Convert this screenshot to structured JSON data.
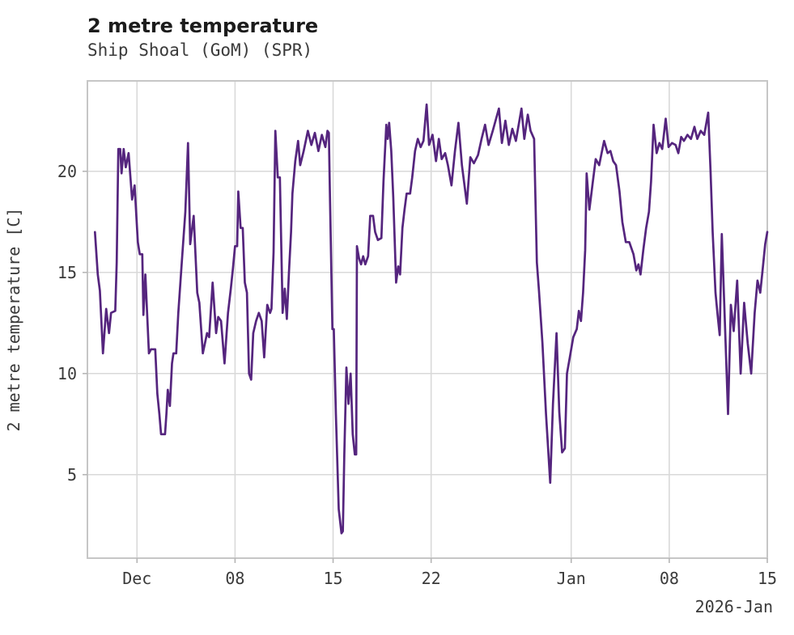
{
  "header": {
    "title": "2 metre temperature",
    "subtitle": "Ship Shoal (GoM) (SPR)"
  },
  "style": {
    "line_color": "#55257e",
    "grid_color": "#d9d9d9",
    "frame_color": "#c6c6c6",
    "tick_color": "#b5b5b5",
    "title_color": "#1c1c1c",
    "text_color": "#3a3a3a",
    "background": "#ffffff"
  },
  "chart_data": {
    "type": "line",
    "title": "2 metre temperature",
    "subtitle": "Ship Shoal (GoM) (SPR)",
    "ylabel": "2 metre temperature [C]",
    "xlabel": "",
    "x_axis_annotation": "2026-Jan",
    "grid": true,
    "legend_position": "none",
    "x_unit": "days relative to Dec 1 00:00 (Nov 28 = -3, Jan 15 = 45)",
    "xlim": [
      -3.54,
      45.0
    ],
    "ylim": [
      0.87,
      24.47
    ],
    "y_ticks": [
      5,
      10,
      15,
      20
    ],
    "x_ticks": [
      {
        "d": 0,
        "label": "Dec"
      },
      {
        "d": 7,
        "label": "08"
      },
      {
        "d": 14,
        "label": "15"
      },
      {
        "d": 21,
        "label": "22"
      },
      {
        "d": 31,
        "label": "Jan"
      },
      {
        "d": 38,
        "label": "08"
      },
      {
        "d": 45,
        "label": "15"
      }
    ],
    "series": [
      {
        "name": "2 metre temperature [C]",
        "color": "#55257e",
        "points": [
          [
            -3.0,
            17.0
          ],
          [
            -2.8,
            14.9
          ],
          [
            -2.65,
            14.1
          ],
          [
            -2.43,
            11.0
          ],
          [
            -2.2,
            13.2
          ],
          [
            -2.0,
            12.0
          ],
          [
            -1.85,
            13.0
          ],
          [
            -1.55,
            13.1
          ],
          [
            -1.45,
            15.5
          ],
          [
            -1.33,
            21.1
          ],
          [
            -1.2,
            21.1
          ],
          [
            -1.1,
            19.9
          ],
          [
            -0.95,
            21.1
          ],
          [
            -0.8,
            20.2
          ],
          [
            -0.6,
            20.9
          ],
          [
            -0.5,
            20.0
          ],
          [
            -0.35,
            18.6
          ],
          [
            -0.17,
            19.3
          ],
          [
            0.06,
            16.5
          ],
          [
            0.2,
            15.9
          ],
          [
            0.38,
            15.9
          ],
          [
            0.46,
            12.9
          ],
          [
            0.6,
            14.9
          ],
          [
            0.85,
            11.0
          ],
          [
            1.0,
            11.2
          ],
          [
            1.3,
            11.2
          ],
          [
            1.45,
            9.0
          ],
          [
            1.6,
            8.0
          ],
          [
            1.72,
            7.0
          ],
          [
            2.0,
            7.0
          ],
          [
            2.1,
            8.0
          ],
          [
            2.2,
            9.2
          ],
          [
            2.35,
            8.4
          ],
          [
            2.5,
            10.5
          ],
          [
            2.6,
            11.0
          ],
          [
            2.8,
            11.0
          ],
          [
            2.95,
            13.0
          ],
          [
            3.2,
            15.5
          ],
          [
            3.45,
            18.0
          ],
          [
            3.64,
            21.4
          ],
          [
            3.8,
            16.4
          ],
          [
            4.05,
            17.8
          ],
          [
            4.3,
            14.0
          ],
          [
            4.45,
            13.5
          ],
          [
            4.7,
            11.0
          ],
          [
            4.85,
            11.5
          ],
          [
            5.0,
            12.0
          ],
          [
            5.15,
            11.8
          ],
          [
            5.4,
            14.5
          ],
          [
            5.65,
            12.0
          ],
          [
            5.8,
            12.8
          ],
          [
            6.0,
            12.6
          ],
          [
            6.25,
            10.5
          ],
          [
            6.5,
            13.0
          ],
          [
            6.7,
            14.2
          ],
          [
            6.85,
            15.2
          ],
          [
            7.0,
            16.3
          ],
          [
            7.15,
            16.3
          ],
          [
            7.23,
            19.0
          ],
          [
            7.4,
            17.2
          ],
          [
            7.55,
            17.2
          ],
          [
            7.7,
            14.5
          ],
          [
            7.85,
            14.0
          ],
          [
            8.0,
            10.0
          ],
          [
            8.15,
            9.7
          ],
          [
            8.3,
            12.0
          ],
          [
            8.5,
            12.6
          ],
          [
            8.7,
            13.0
          ],
          [
            8.9,
            12.6
          ],
          [
            9.08,
            10.8
          ],
          [
            9.3,
            13.4
          ],
          [
            9.5,
            13.0
          ],
          [
            9.6,
            13.2
          ],
          [
            9.75,
            16.0
          ],
          [
            9.88,
            22.0
          ],
          [
            10.05,
            19.7
          ],
          [
            10.2,
            19.7
          ],
          [
            10.4,
            13.0
          ],
          [
            10.55,
            14.2
          ],
          [
            10.7,
            12.7
          ],
          [
            10.85,
            15.0
          ],
          [
            11.0,
            17.0
          ],
          [
            11.1,
            18.9
          ],
          [
            11.3,
            20.5
          ],
          [
            11.5,
            21.5
          ],
          [
            11.65,
            20.3
          ],
          [
            11.9,
            21.0
          ],
          [
            12.2,
            22.0
          ],
          [
            12.45,
            21.3
          ],
          [
            12.7,
            21.9
          ],
          [
            12.95,
            21.0
          ],
          [
            13.2,
            21.8
          ],
          [
            13.45,
            21.2
          ],
          [
            13.6,
            22.0
          ],
          [
            13.7,
            21.9
          ],
          [
            13.78,
            18.7
          ],
          [
            13.95,
            12.2
          ],
          [
            14.05,
            12.2
          ],
          [
            14.2,
            8.0
          ],
          [
            14.4,
            3.3
          ],
          [
            14.6,
            2.1
          ],
          [
            14.7,
            2.2
          ],
          [
            14.8,
            6.0
          ],
          [
            14.95,
            10.3
          ],
          [
            15.1,
            8.5
          ],
          [
            15.25,
            10.0
          ],
          [
            15.4,
            7.0
          ],
          [
            15.55,
            6.0
          ],
          [
            15.65,
            6.0
          ],
          [
            15.7,
            16.3
          ],
          [
            15.85,
            15.7
          ],
          [
            16.0,
            15.4
          ],
          [
            16.15,
            15.8
          ],
          [
            16.3,
            15.4
          ],
          [
            16.5,
            15.8
          ],
          [
            16.65,
            17.8
          ],
          [
            16.85,
            17.8
          ],
          [
            17.0,
            17.0
          ],
          [
            17.2,
            16.6
          ],
          [
            17.45,
            16.7
          ],
          [
            17.6,
            19.5
          ],
          [
            17.8,
            22.3
          ],
          [
            17.9,
            21.6
          ],
          [
            18.0,
            22.4
          ],
          [
            18.15,
            21.0
          ],
          [
            18.3,
            18.7
          ],
          [
            18.5,
            14.5
          ],
          [
            18.65,
            15.3
          ],
          [
            18.78,
            14.9
          ],
          [
            18.95,
            17.2
          ],
          [
            19.1,
            18.1
          ],
          [
            19.25,
            18.9
          ],
          [
            19.5,
            18.9
          ],
          [
            19.65,
            19.7
          ],
          [
            19.85,
            21.0
          ],
          [
            20.05,
            21.6
          ],
          [
            20.25,
            21.2
          ],
          [
            20.45,
            21.5
          ],
          [
            20.68,
            23.3
          ],
          [
            20.85,
            21.3
          ],
          [
            21.1,
            21.8
          ],
          [
            21.35,
            20.5
          ],
          [
            21.55,
            21.6
          ],
          [
            21.75,
            20.6
          ],
          [
            22.0,
            20.9
          ],
          [
            22.2,
            20.3
          ],
          [
            22.45,
            19.3
          ],
          [
            22.7,
            21.0
          ],
          [
            22.95,
            22.4
          ],
          [
            23.2,
            20.3
          ],
          [
            23.55,
            18.4
          ],
          [
            23.8,
            20.7
          ],
          [
            24.05,
            20.4
          ],
          [
            24.35,
            20.8
          ],
          [
            24.6,
            21.6
          ],
          [
            24.85,
            22.3
          ],
          [
            25.1,
            21.3
          ],
          [
            25.4,
            22.0
          ],
          [
            25.84,
            23.1
          ],
          [
            26.05,
            21.4
          ],
          [
            26.3,
            22.5
          ],
          [
            26.55,
            21.3
          ],
          [
            26.8,
            22.1
          ],
          [
            27.05,
            21.5
          ],
          [
            27.45,
            23.1
          ],
          [
            27.65,
            21.6
          ],
          [
            27.9,
            22.8
          ],
          [
            28.1,
            22.0
          ],
          [
            28.35,
            21.6
          ],
          [
            28.55,
            15.5
          ],
          [
            28.7,
            14.1
          ],
          [
            28.95,
            11.5
          ],
          [
            29.2,
            8.0
          ],
          [
            29.5,
            4.6
          ],
          [
            29.7,
            8.5
          ],
          [
            29.95,
            12.0
          ],
          [
            30.15,
            8.1
          ],
          [
            30.35,
            6.1
          ],
          [
            30.55,
            6.3
          ],
          [
            30.7,
            10.0
          ],
          [
            30.9,
            10.8
          ],
          [
            31.15,
            11.8
          ],
          [
            31.4,
            12.2
          ],
          [
            31.55,
            13.1
          ],
          [
            31.7,
            12.6
          ],
          [
            31.85,
            14.0
          ],
          [
            32.0,
            16.1
          ],
          [
            32.1,
            19.9
          ],
          [
            32.3,
            18.1
          ],
          [
            32.55,
            19.5
          ],
          [
            32.75,
            20.6
          ],
          [
            33.0,
            20.3
          ],
          [
            33.2,
            21.0
          ],
          [
            33.35,
            21.5
          ],
          [
            33.6,
            20.9
          ],
          [
            33.8,
            21.0
          ],
          [
            34.0,
            20.5
          ],
          [
            34.2,
            20.3
          ],
          [
            34.45,
            19.0
          ],
          [
            34.65,
            17.5
          ],
          [
            34.9,
            16.5
          ],
          [
            35.15,
            16.5
          ],
          [
            35.45,
            15.9
          ],
          [
            35.65,
            15.1
          ],
          [
            35.8,
            15.4
          ],
          [
            35.95,
            14.9
          ],
          [
            36.15,
            16.1
          ],
          [
            36.35,
            17.2
          ],
          [
            36.55,
            18.0
          ],
          [
            36.7,
            19.5
          ],
          [
            36.88,
            22.3
          ],
          [
            37.1,
            20.9
          ],
          [
            37.3,
            21.4
          ],
          [
            37.5,
            21.1
          ],
          [
            37.75,
            22.6
          ],
          [
            37.95,
            21.2
          ],
          [
            38.2,
            21.4
          ],
          [
            38.45,
            21.3
          ],
          [
            38.65,
            20.9
          ],
          [
            38.85,
            21.7
          ],
          [
            39.05,
            21.5
          ],
          [
            39.3,
            21.8
          ],
          [
            39.55,
            21.6
          ],
          [
            39.8,
            22.2
          ],
          [
            40.0,
            21.6
          ],
          [
            40.25,
            22.0
          ],
          [
            40.5,
            21.8
          ],
          [
            40.78,
            22.9
          ],
          [
            40.95,
            20.0
          ],
          [
            41.1,
            17.0
          ],
          [
            41.3,
            14.0
          ],
          [
            41.45,
            12.9
          ],
          [
            41.6,
            11.9
          ],
          [
            41.75,
            16.9
          ],
          [
            41.95,
            13.0
          ],
          [
            42.1,
            10.0
          ],
          [
            42.2,
            8.0
          ],
          [
            42.4,
            13.4
          ],
          [
            42.6,
            12.1
          ],
          [
            42.85,
            14.6
          ],
          [
            43.1,
            10.0
          ],
          [
            43.35,
            13.5
          ],
          [
            43.6,
            11.5
          ],
          [
            43.85,
            10.0
          ],
          [
            44.1,
            13.0
          ],
          [
            44.3,
            14.6
          ],
          [
            44.5,
            14.0
          ],
          [
            44.65,
            15.0
          ],
          [
            44.85,
            16.4
          ],
          [
            45.0,
            17.0
          ]
        ]
      }
    ]
  }
}
